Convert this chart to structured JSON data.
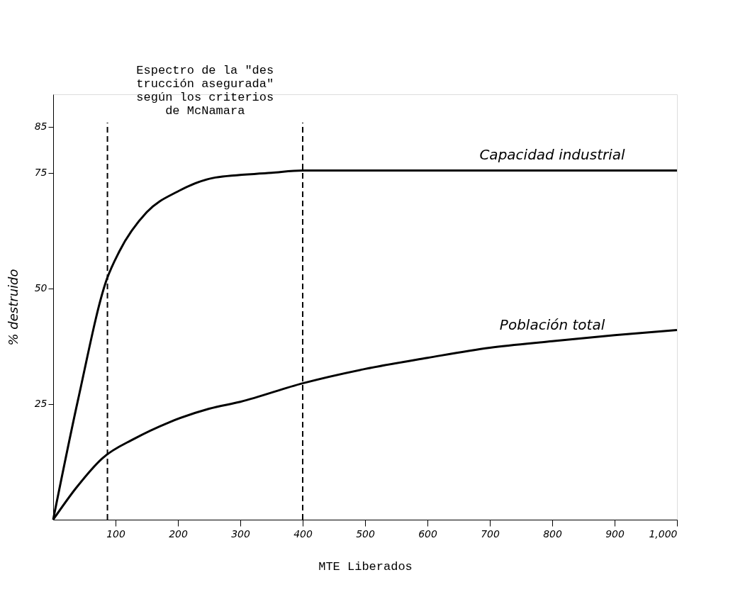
{
  "chart_data": {
    "type": "line",
    "xlabel": "MTE Liberados",
    "ylabel": "% destruido",
    "annotations": [
      "Espectro de la \"des\ntrucción asegurada\"\nsegún los criterios\nde McNamara"
    ],
    "series": [
      {
        "name": "Capacidad industrial",
        "color": "#000000",
        "x": [
          0,
          40,
          86,
          106,
          150,
          200,
          260,
          350,
          400,
          500,
          600,
          700,
          800,
          900,
          1000
        ],
        "values": [
          0,
          26,
          52,
          58,
          66.5,
          71,
          74,
          75,
          75.5,
          75.5,
          75.5,
          75.5,
          75.5,
          75.5,
          75.5
        ]
      },
      {
        "name": "Población total",
        "color": "#000000",
        "x": [
          0,
          37,
          79,
          130,
          185,
          250,
          300,
          400,
          500,
          600,
          700,
          800,
          900,
          1000
        ],
        "values": [
          0,
          6.9,
          13.3,
          17.5,
          21,
          24,
          25.5,
          29.5,
          32.6,
          35,
          37.2,
          38.6,
          39.9,
          41
        ]
      }
    ],
    "ref_lines": [
      {
        "axis": "x",
        "value": 87,
        "line_style": "dashed"
      },
      {
        "axis": "x",
        "value": 400,
        "line_style": "dashed"
      }
    ],
    "xlim": [
      0,
      1000
    ],
    "ylim": [
      0,
      92
    ],
    "xticks": [
      100,
      200,
      300,
      400,
      500,
      600,
      700,
      800,
      900,
      {
        "value": 1000,
        "label": "1,000"
      }
    ],
    "yticks": [
      25,
      50,
      75,
      85
    ],
    "marker": "none",
    "line_style": "solid"
  }
}
